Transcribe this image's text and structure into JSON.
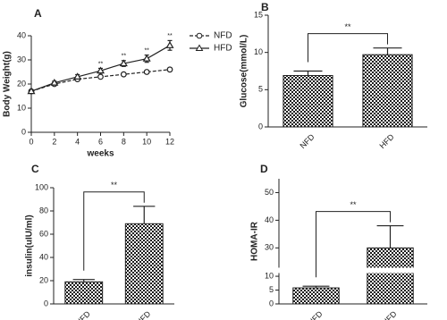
{
  "chart_data": [
    {
      "type": "line",
      "title": "A",
      "xlabel": "weeks",
      "ylabel": "Body Weight(g)",
      "x": [
        0,
        2,
        4,
        6,
        8,
        10,
        12
      ],
      "xlim": [
        0,
        12
      ],
      "xticks": [
        0,
        2,
        4,
        6,
        8,
        10,
        12
      ],
      "ylim": [
        0,
        40
      ],
      "yticks": [
        0,
        10,
        20,
        30,
        40
      ],
      "series": [
        {
          "name": "NFD",
          "color": "#222222",
          "marker": "circle",
          "linestyle": "dashed",
          "values": [
            17,
            20,
            22,
            23,
            24,
            25,
            26
          ],
          "errors": [
            0.5,
            0.5,
            0.6,
            0.6,
            0.6,
            0.6,
            0.7
          ]
        },
        {
          "name": "HFD",
          "color": "#222222",
          "marker": "triangle",
          "linestyle": "solid",
          "values": [
            17,
            20.5,
            23,
            25.5,
            28.5,
            30.5,
            36
          ],
          "errors": [
            0.6,
            0.7,
            0.9,
            1,
            1.2,
            1.5,
            2
          ]
        }
      ],
      "annotations": [
        {
          "x": 6,
          "text": "**"
        },
        {
          "x": 8,
          "text": "**"
        },
        {
          "x": 10,
          "text": "**"
        },
        {
          "x": 12,
          "text": "**"
        }
      ],
      "legend": "upper right"
    },
    {
      "type": "bar",
      "title": "B",
      "ylabel": "Glucose(mmol/L)",
      "categories": [
        "NFD",
        "HFD"
      ],
      "values": [
        6.9,
        9.7
      ],
      "errors": [
        0.6,
        0.9
      ],
      "color": "#1a1a1a",
      "ylim": [
        0,
        15
      ],
      "yticks": [
        0,
        5,
        10,
        15
      ],
      "annotation": "**"
    },
    {
      "type": "bar",
      "title": "C",
      "ylabel": "insulin(uIU/ml)",
      "categories": [
        "NFD",
        "HFD"
      ],
      "values": [
        19,
        69
      ],
      "errors": [
        2,
        15
      ],
      "color": "#1a1a1a",
      "ylim": [
        0,
        100
      ],
      "yticks": [
        0,
        20,
        40,
        60,
        80,
        100
      ],
      "annotation": "**"
    },
    {
      "type": "bar",
      "title": "D",
      "ylabel": "HOMA-IR",
      "categories": [
        "NFD",
        "HFD"
      ],
      "values": [
        5.8,
        30
      ],
      "errors": [
        0.6,
        8
      ],
      "color": "#1a1a1a",
      "ylim": [
        0,
        55
      ],
      "ybreak": [
        11,
        23
      ],
      "yticks": [
        0,
        5,
        10,
        30,
        40,
        50
      ],
      "annotation": "**"
    }
  ]
}
